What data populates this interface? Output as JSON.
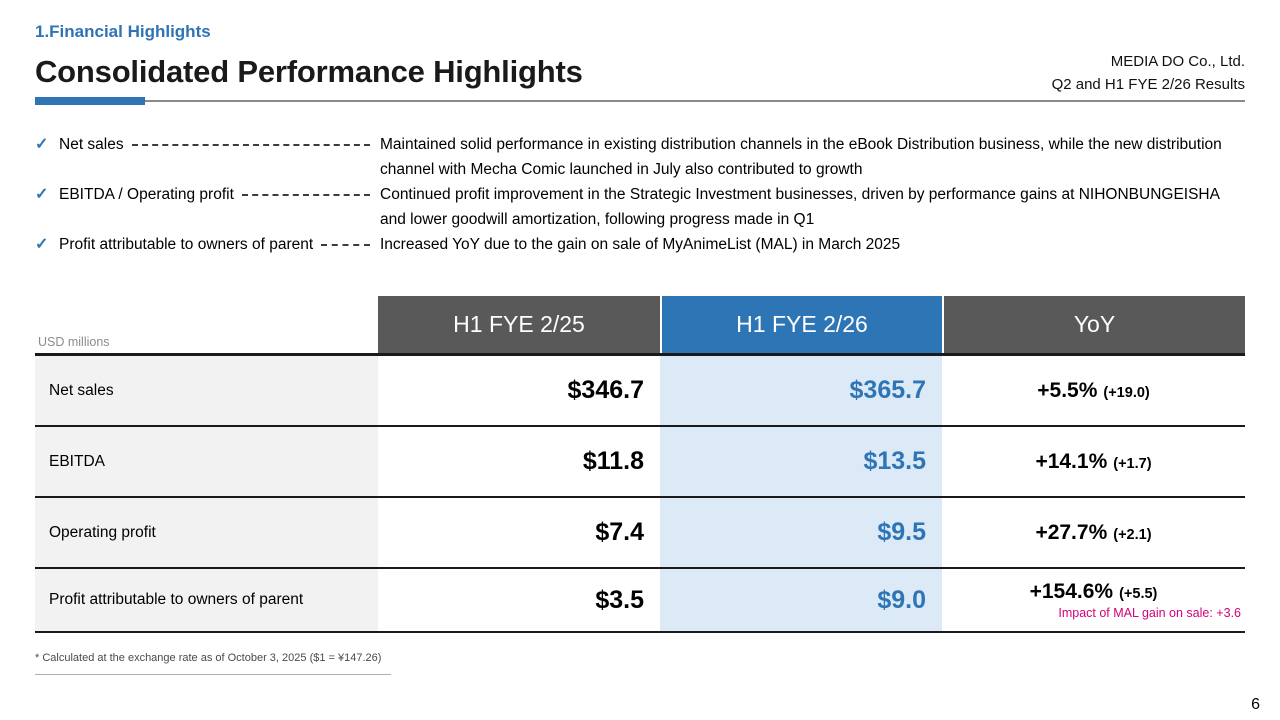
{
  "header": {
    "section": "1.Financial Highlights",
    "title": "Consolidated Performance Highlights",
    "company": "MEDIA DO Co., Ltd.",
    "subtitle": "Q2 and H1 FYE 2/26 Results"
  },
  "icons": {
    "check": "✓"
  },
  "bullets": [
    {
      "label": "Net sales",
      "desc": "Maintained solid performance in existing distribution channels in the eBook Distribution business, while the new distribution channel with Mecha Comic launched in July also contributed to growth"
    },
    {
      "label": "EBITDA / Operating profit",
      "desc": "Continued profit improvement in the Strategic Investment businesses, driven by performance gains at NIHONBUNGEISHA and lower goodwill amortization, following progress made in Q1"
    },
    {
      "label": "Profit attributable to owners of parent",
      "desc": "Increased YoY due to the gain on sale of MyAnimeList (MAL) in March 2025"
    }
  ],
  "table": {
    "unit_label": "USD millions",
    "columns": [
      "H1 FYE 2/25",
      "H1 FYE 2/26",
      "YoY"
    ],
    "rows": [
      {
        "label": "Net sales",
        "fy25": "$346.7",
        "fy26": "$365.7",
        "yoy": "+5.5%",
        "yoy_delta": "(+19.0)",
        "note": ""
      },
      {
        "label": "EBITDA",
        "fy25": "$11.8",
        "fy26": "$13.5",
        "yoy": "+14.1%",
        "yoy_delta": "(+1.7)",
        "note": ""
      },
      {
        "label": "Operating profit",
        "fy25": "$7.4",
        "fy26": "$9.5",
        "yoy": "+27.7%",
        "yoy_delta": "(+2.1)",
        "note": ""
      },
      {
        "label": "Profit attributable to owners of parent",
        "fy25": "$3.5",
        "fy26": "$9.0",
        "yoy": "+154.6%",
        "yoy_delta": "(+5.5)",
        "note": "Impact of MAL gain on sale: +3.6"
      }
    ]
  },
  "footnote": "* Calculated at the exchange rate as of October 3, 2025 ($1 = ¥147.26)",
  "page_number": "6",
  "colors": {
    "accent_blue": "#2e75b6",
    "header_gray": "#595959",
    "highlight_blue_bg": "#dce9f6",
    "row_label_bg": "#f2f2f2",
    "magenta_note": "#d40078"
  }
}
